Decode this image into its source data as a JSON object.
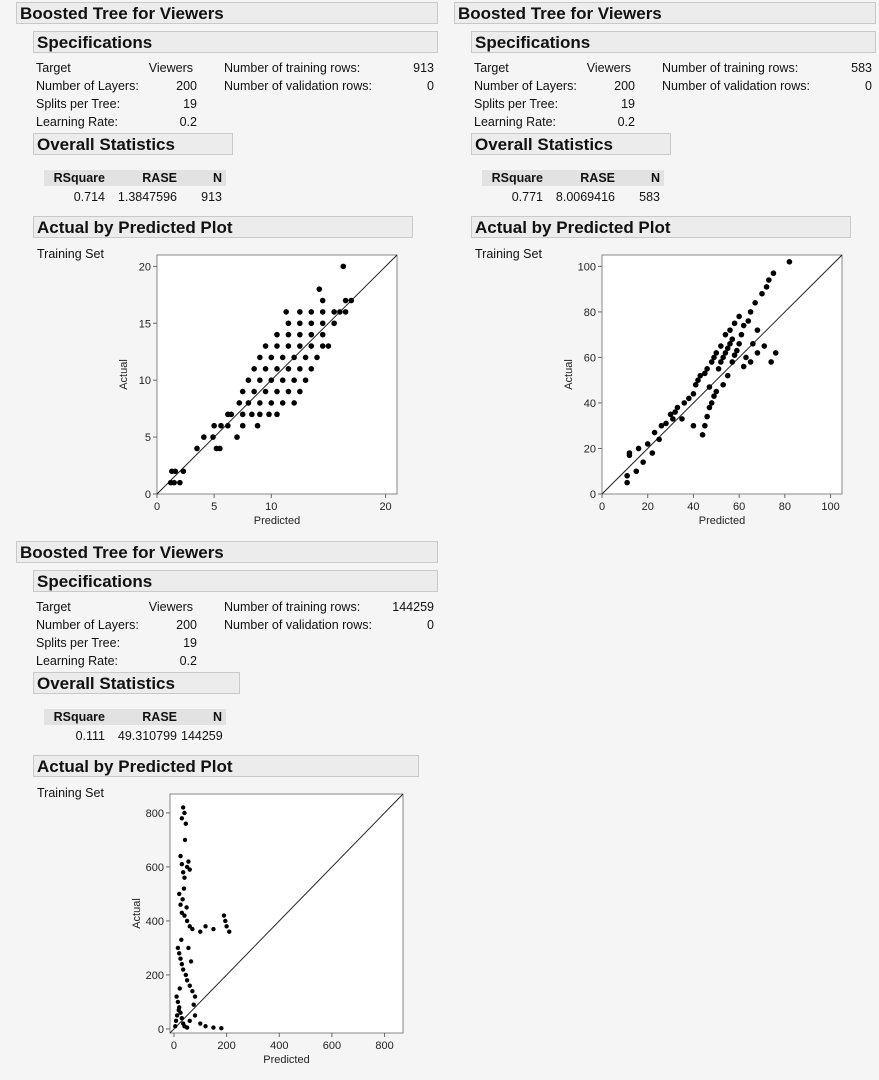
{
  "reports": [
    {
      "title": "Boosted Tree for Viewers",
      "specs_title": "Specifications",
      "target_label": "Target",
      "target_value": "Viewers",
      "layers_label": "Number of Layers:",
      "layers_value": "200",
      "splits_label": "Splits per Tree:",
      "splits_value": "19",
      "lr_label": "Learning Rate:",
      "lr_value": "0.2",
      "train_label": "Number of training rows:",
      "train_value": "913",
      "valid_label": "Number of validation rows:",
      "valid_value": "0",
      "stats_title": "Overall Statistics",
      "stats_headers": [
        "RSquare",
        "RASE",
        "N"
      ],
      "stats_values": [
        "0.714",
        "1.3847596",
        "913"
      ],
      "plot_title": "Actual by Predicted Plot",
      "set_label": "Training Set",
      "chart_data": {
        "type": "scatter",
        "xlabel": "Predicted",
        "ylabel": "Actual",
        "xlim": [
          0,
          21
        ],
        "ylim": [
          0,
          21
        ],
        "xticks": [
          0,
          5,
          10,
          20
        ],
        "yticks": [
          0,
          5,
          10,
          15,
          20
        ],
        "diagonal": true,
        "points": [
          [
            1.2,
            1
          ],
          [
            1.5,
            1
          ],
          [
            2,
            1
          ],
          [
            1.3,
            2
          ],
          [
            1.6,
            2
          ],
          [
            2.3,
            2
          ],
          [
            3.5,
            4
          ],
          [
            4.1,
            5
          ],
          [
            4.9,
            5
          ],
          [
            5.2,
            4
          ],
          [
            5.5,
            4
          ],
          [
            5,
            6
          ],
          [
            5.6,
            6
          ],
          [
            6.2,
            6
          ],
          [
            6.5,
            7
          ],
          [
            7,
            5
          ],
          [
            7.5,
            6
          ],
          [
            8.8,
            6
          ],
          [
            6.2,
            7
          ],
          [
            7.5,
            7
          ],
          [
            8.3,
            7
          ],
          [
            9,
            7
          ],
          [
            9.8,
            7
          ],
          [
            10.5,
            7
          ],
          [
            7.2,
            8
          ],
          [
            8,
            8
          ],
          [
            9,
            8
          ],
          [
            10,
            8
          ],
          [
            11,
            8
          ],
          [
            12,
            8
          ],
          [
            7.5,
            9
          ],
          [
            8.5,
            9
          ],
          [
            9.5,
            9
          ],
          [
            10.5,
            9
          ],
          [
            11.5,
            9
          ],
          [
            12.5,
            9
          ],
          [
            8,
            10
          ],
          [
            9,
            10
          ],
          [
            10,
            10
          ],
          [
            11,
            10
          ],
          [
            12,
            10
          ],
          [
            13,
            10
          ],
          [
            8.5,
            11
          ],
          [
            9.5,
            11
          ],
          [
            10.5,
            11
          ],
          [
            11.5,
            11
          ],
          [
            12.5,
            11
          ],
          [
            13.5,
            11
          ],
          [
            9,
            12
          ],
          [
            10,
            12
          ],
          [
            11,
            12
          ],
          [
            12,
            12
          ],
          [
            13,
            12
          ],
          [
            14,
            12
          ],
          [
            9.5,
            13
          ],
          [
            10.5,
            13
          ],
          [
            11.5,
            13
          ],
          [
            12.5,
            13
          ],
          [
            13.5,
            13
          ],
          [
            14.5,
            13
          ],
          [
            15,
            13
          ],
          [
            10.5,
            14
          ],
          [
            11.5,
            14
          ],
          [
            12.5,
            14
          ],
          [
            13.5,
            14
          ],
          [
            14.5,
            14
          ],
          [
            11.5,
            15
          ],
          [
            12.5,
            15
          ],
          [
            13.5,
            15
          ],
          [
            14.5,
            15
          ],
          [
            15.5,
            15
          ],
          [
            11.3,
            16
          ],
          [
            12.5,
            16
          ],
          [
            13.5,
            16
          ],
          [
            14.5,
            16
          ],
          [
            15.5,
            16
          ],
          [
            16,
            16
          ],
          [
            16.5,
            16
          ],
          [
            14.5,
            17
          ],
          [
            16.5,
            17
          ],
          [
            17,
            17
          ],
          [
            14.2,
            18
          ],
          [
            16.3,
            20
          ]
        ]
      }
    },
    {
      "title": "Boosted Tree for Viewers",
      "specs_title": "Specifications",
      "target_label": "Target",
      "target_value": "Viewers",
      "layers_label": "Number of Layers:",
      "layers_value": "200",
      "splits_label": "Splits per Tree:",
      "splits_value": "19",
      "lr_label": "Learning Rate:",
      "lr_value": "0.2",
      "train_label": "Number of training rows:",
      "train_value": "583",
      "valid_label": "Number of validation rows:",
      "valid_value": "0",
      "stats_title": "Overall Statistics",
      "stats_headers": [
        "RSquare",
        "RASE",
        "N"
      ],
      "stats_values": [
        "0.771",
        "8.0069416",
        "583"
      ],
      "plot_title": "Actual by Predicted Plot",
      "set_label": "Training Set",
      "chart_data": {
        "type": "scatter",
        "xlabel": "Predicted",
        "ylabel": "Actual",
        "xlim": [
          0,
          105
        ],
        "ylim": [
          0,
          105
        ],
        "xticks": [
          0,
          20,
          40,
          60,
          80,
          100
        ],
        "yticks": [
          0,
          20,
          40,
          60,
          80,
          100
        ],
        "diagonal": true,
        "points": [
          [
            11,
            5
          ],
          [
            11,
            8
          ],
          [
            12,
            17
          ],
          [
            12,
            18
          ],
          [
            15,
            10
          ],
          [
            16,
            20
          ],
          [
            18,
            14
          ],
          [
            20,
            22
          ],
          [
            22,
            18
          ],
          [
            23,
            27
          ],
          [
            25,
            24
          ],
          [
            26,
            30
          ],
          [
            28,
            31
          ],
          [
            30,
            35
          ],
          [
            31,
            33
          ],
          [
            32,
            36
          ],
          [
            33,
            38
          ],
          [
            35,
            33
          ],
          [
            36,
            40
          ],
          [
            38,
            42
          ],
          [
            40,
            44
          ],
          [
            40,
            30
          ],
          [
            41,
            48
          ],
          [
            42,
            50
          ],
          [
            43,
            52
          ],
          [
            44,
            26
          ],
          [
            45,
            30
          ],
          [
            45,
            53
          ],
          [
            46,
            34
          ],
          [
            46,
            55
          ],
          [
            47,
            38
          ],
          [
            47,
            47
          ],
          [
            48,
            40
          ],
          [
            48,
            58
          ],
          [
            49,
            43
          ],
          [
            49,
            60
          ],
          [
            50,
            45
          ],
          [
            50,
            62
          ],
          [
            51,
            55
          ],
          [
            52,
            58
          ],
          [
            52,
            65
          ],
          [
            53,
            60
          ],
          [
            53,
            48
          ],
          [
            54,
            62
          ],
          [
            54,
            70
          ],
          [
            55,
            64
          ],
          [
            55,
            52
          ],
          [
            56,
            66
          ],
          [
            56,
            72
          ],
          [
            57,
            58
          ],
          [
            57,
            68
          ],
          [
            58,
            61
          ],
          [
            58,
            75
          ],
          [
            59,
            63
          ],
          [
            60,
            66
          ],
          [
            60,
            78
          ],
          [
            61,
            70
          ],
          [
            62,
            56
          ],
          [
            62,
            74
          ],
          [
            63,
            60
          ],
          [
            64,
            76
          ],
          [
            65,
            58
          ],
          [
            65,
            80
          ],
          [
            66,
            66
          ],
          [
            67,
            84
          ],
          [
            68,
            62
          ],
          [
            68,
            72
          ],
          [
            70,
            88
          ],
          [
            71,
            65
          ],
          [
            72,
            91
          ],
          [
            73,
            94
          ],
          [
            74,
            58
          ],
          [
            75,
            97
          ],
          [
            76,
            62
          ],
          [
            82,
            102
          ]
        ]
      }
    },
    {
      "title": "Boosted Tree for Viewers",
      "specs_title": "Specifications",
      "target_label": "Target",
      "target_value": "Viewers",
      "layers_label": "Number of Layers:",
      "layers_value": "200",
      "splits_label": "Splits per Tree:",
      "splits_value": "19",
      "lr_label": "Learning Rate:",
      "lr_value": "0.2",
      "train_label": "Number of training rows:",
      "train_value": "144259",
      "valid_label": "Number of validation rows:",
      "valid_value": "0",
      "stats_title": "Overall Statistics",
      "stats_headers": [
        "RSquare",
        "RASE",
        "N"
      ],
      "stats_values": [
        "0.111",
        "49.310799",
        "144259"
      ],
      "plot_title": "Actual by Predicted Plot",
      "set_label": "Training Set",
      "chart_data": {
        "type": "scatter",
        "xlabel": "Predicted",
        "ylabel": "Actual",
        "xlim": [
          -15,
          870
        ],
        "ylim": [
          -15,
          870
        ],
        "xticks": [
          0,
          200,
          400,
          600,
          800
        ],
        "yticks": [
          0,
          200,
          400,
          600,
          800
        ],
        "diagonal": true,
        "points": [
          [
            30,
            780
          ],
          [
            35,
            820
          ],
          [
            40,
            800
          ],
          [
            45,
            760
          ],
          [
            25,
            640
          ],
          [
            30,
            610
          ],
          [
            35,
            580
          ],
          [
            40,
            560
          ],
          [
            50,
            600
          ],
          [
            55,
            620
          ],
          [
            60,
            590
          ],
          [
            20,
            500
          ],
          [
            25,
            460
          ],
          [
            30,
            430
          ],
          [
            40,
            420
          ],
          [
            50,
            400
          ],
          [
            60,
            380
          ],
          [
            70,
            370
          ],
          [
            100,
            360
          ],
          [
            120,
            380
          ],
          [
            150,
            370
          ],
          [
            190,
            420
          ],
          [
            195,
            400
          ],
          [
            200,
            380
          ],
          [
            210,
            360
          ],
          [
            15,
            300
          ],
          [
            20,
            280
          ],
          [
            25,
            260
          ],
          [
            30,
            240
          ],
          [
            35,
            220
          ],
          [
            45,
            200
          ],
          [
            50,
            180
          ],
          [
            60,
            160
          ],
          [
            70,
            140
          ],
          [
            80,
            120
          ],
          [
            10,
            120
          ],
          [
            15,
            100
          ],
          [
            20,
            80
          ],
          [
            25,
            60
          ],
          [
            30,
            40
          ],
          [
            35,
            20
          ],
          [
            40,
            10
          ],
          [
            50,
            5
          ],
          [
            60,
            30
          ],
          [
            80,
            50
          ],
          [
            100,
            20
          ],
          [
            120,
            10
          ],
          [
            150,
            5
          ],
          [
            180,
            3
          ],
          [
            5,
            10
          ],
          [
            8,
            30
          ],
          [
            12,
            50
          ],
          [
            18,
            70
          ],
          [
            22,
            150
          ],
          [
            28,
            330
          ],
          [
            33,
            480
          ],
          [
            38,
            520
          ],
          [
            42,
            700
          ],
          [
            48,
            450
          ],
          [
            55,
            300
          ],
          [
            65,
            250
          ],
          [
            75,
            90
          ]
        ]
      }
    }
  ]
}
